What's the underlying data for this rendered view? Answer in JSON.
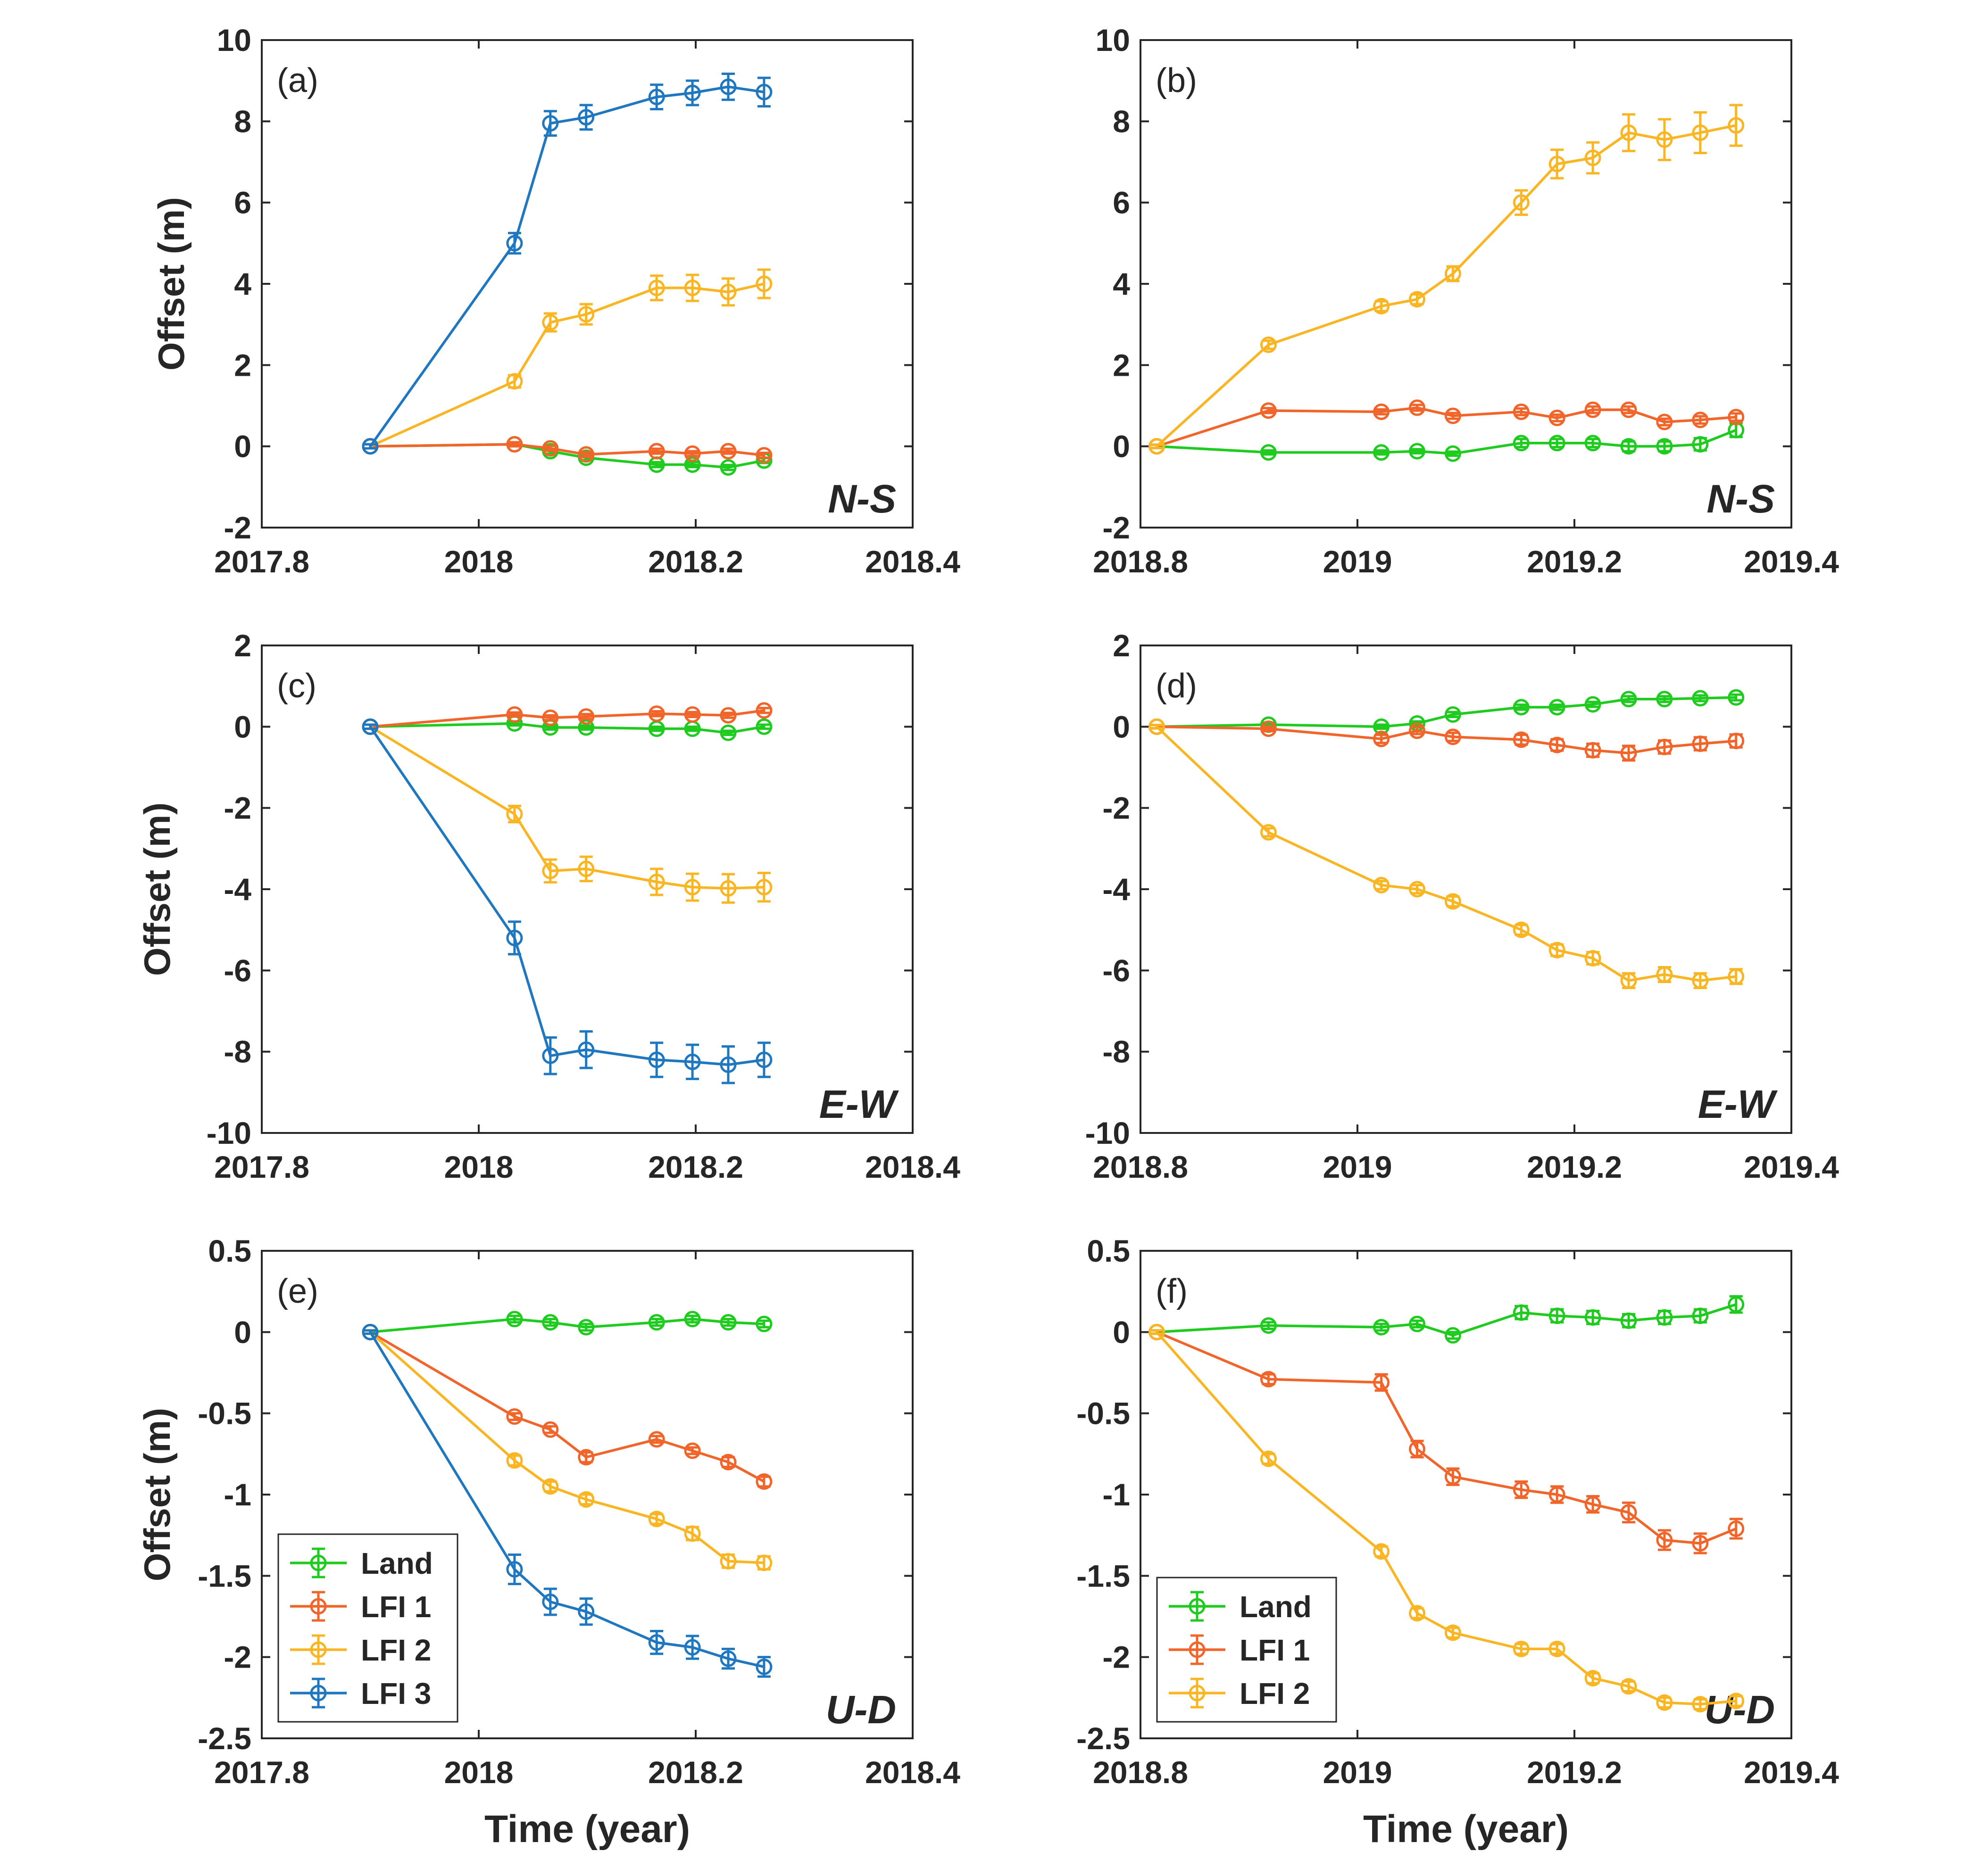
{
  "colors": {
    "Land": "#1fcb1f",
    "LFI 1": "#f1652a",
    "LFI 2": "#f9b522",
    "LFI 3": "#1f77c0",
    "axis": "#262626"
  },
  "xlabel": "Time (year)",
  "ylabel": "Offset (m)",
  "chart_data": [
    {
      "type": "line",
      "panel": "(a)",
      "component": "N-S",
      "xlim": [
        2017.8,
        2018.4
      ],
      "xticks": [
        2017.8,
        2018,
        2018.2,
        2018.4
      ],
      "xticklabels": [
        "2017.8",
        "2018",
        "2018.2",
        "2018.4"
      ],
      "ylim": [
        -2,
        10
      ],
      "yticks": [
        -2,
        0,
        2,
        4,
        6,
        8,
        10
      ],
      "yticklabels": [
        "-2",
        "0",
        "2",
        "4",
        "6",
        "8",
        "10"
      ],
      "ylabel": "Offset (m)",
      "xlabel": "",
      "series": [
        {
          "name": "Land",
          "x": [
            2017.9,
            2018.033,
            2018.066,
            2018.099,
            2018.164,
            2018.197,
            2018.23,
            2018.263
          ],
          "y": [
            0,
            0.05,
            -0.12,
            -0.28,
            -0.45,
            -0.45,
            -0.52,
            -0.35
          ],
          "err": [
            0.05,
            0.05,
            0.06,
            0.06,
            0.06,
            0.06,
            0.06,
            0.06
          ]
        },
        {
          "name": "LFI 1",
          "x": [
            2017.9,
            2018.033,
            2018.066,
            2018.099,
            2018.164,
            2018.197,
            2018.23,
            2018.263
          ],
          "y": [
            0,
            0.05,
            -0.05,
            -0.2,
            -0.12,
            -0.18,
            -0.12,
            -0.22
          ],
          "err": [
            0.05,
            0.05,
            0.06,
            0.06,
            0.06,
            0.06,
            0.06,
            0.06
          ]
        },
        {
          "name": "LFI 2",
          "x": [
            2017.9,
            2018.033,
            2018.066,
            2018.099,
            2018.164,
            2018.197,
            2018.23,
            2018.263
          ],
          "y": [
            0,
            1.6,
            3.05,
            3.25,
            3.9,
            3.9,
            3.8,
            4.0
          ],
          "err": [
            0.05,
            0.15,
            0.22,
            0.25,
            0.3,
            0.32,
            0.33,
            0.35
          ]
        },
        {
          "name": "LFI 3",
          "x": [
            2017.9,
            2018.033,
            2018.066,
            2018.099,
            2018.164,
            2018.197,
            2018.23,
            2018.263
          ],
          "y": [
            0,
            5.0,
            7.95,
            8.1,
            8.6,
            8.7,
            8.85,
            8.72
          ],
          "err": [
            0.05,
            0.25,
            0.3,
            0.3,
            0.3,
            0.3,
            0.32,
            0.35
          ]
        }
      ]
    },
    {
      "type": "line",
      "panel": "(b)",
      "component": "N-S",
      "xlim": [
        2018.8,
        2019.4
      ],
      "xticks": [
        2018.8,
        2019,
        2019.2,
        2019.4
      ],
      "xticklabels": [
        "2018.8",
        "2019",
        "2019.2",
        "2019.4"
      ],
      "ylim": [
        -2,
        10
      ],
      "yticks": [
        -2,
        0,
        2,
        4,
        6,
        8,
        10
      ],
      "yticklabels": [
        "-2",
        "0",
        "2",
        "4",
        "6",
        "8",
        "10"
      ],
      "ylabel": "",
      "xlabel": "",
      "series": [
        {
          "name": "Land",
          "x": [
            2018.815,
            2018.918,
            2019.022,
            2019.055,
            2019.088,
            2019.151,
            2019.184,
            2019.217,
            2019.25,
            2019.283,
            2019.316,
            2019.349
          ],
          "y": [
            0,
            -0.15,
            -0.15,
            -0.12,
            -0.18,
            0.08,
            0.08,
            0.08,
            0.0,
            0.0,
            0.05,
            0.4
          ],
          "err": [
            0.04,
            0.05,
            0.05,
            0.05,
            0.05,
            0.1,
            0.1,
            0.1,
            0.12,
            0.12,
            0.15,
            0.17
          ]
        },
        {
          "name": "LFI 1",
          "x": [
            2018.815,
            2018.918,
            2019.022,
            2019.055,
            2019.088,
            2019.151,
            2019.184,
            2019.217,
            2019.25,
            2019.283,
            2019.316,
            2019.349
          ],
          "y": [
            0,
            0.88,
            0.85,
            0.95,
            0.75,
            0.85,
            0.7,
            0.9,
            0.9,
            0.6,
            0.65,
            0.72
          ],
          "err": [
            0.04,
            0.06,
            0.06,
            0.07,
            0.07,
            0.08,
            0.08,
            0.08,
            0.08,
            0.08,
            0.09,
            0.09
          ]
        },
        {
          "name": "LFI 2",
          "x": [
            2018.815,
            2018.918,
            2019.022,
            2019.055,
            2019.088,
            2019.151,
            2019.184,
            2019.217,
            2019.25,
            2019.283,
            2019.316,
            2019.349
          ],
          "y": [
            0,
            2.5,
            3.45,
            3.62,
            4.25,
            6.0,
            6.95,
            7.1,
            7.72,
            7.55,
            7.72,
            7.9
          ],
          "err": [
            0.04,
            0.1,
            0.12,
            0.12,
            0.18,
            0.3,
            0.35,
            0.38,
            0.45,
            0.5,
            0.5,
            0.5
          ]
        }
      ]
    },
    {
      "type": "line",
      "panel": "(c)",
      "component": "E-W",
      "xlim": [
        2017.8,
        2018.4
      ],
      "xticks": [
        2017.8,
        2018,
        2018.2,
        2018.4
      ],
      "xticklabels": [
        "2017.8",
        "2018",
        "2018.2",
        "2018.4"
      ],
      "ylim": [
        -10,
        2
      ],
      "yticks": [
        -10,
        -8,
        -6,
        -4,
        -2,
        0,
        2
      ],
      "yticklabels": [
        "-10",
        "-8",
        "-6",
        "-4",
        "-2",
        "0",
        "2"
      ],
      "ylabel": "Offset (m)",
      "xlabel": "",
      "series": [
        {
          "name": "Land",
          "x": [
            2017.9,
            2018.033,
            2018.066,
            2018.099,
            2018.164,
            2018.197,
            2018.23,
            2018.263
          ],
          "y": [
            0,
            0.08,
            -0.02,
            -0.02,
            -0.05,
            -0.05,
            -0.15,
            0.0
          ],
          "err": [
            0.05,
            0.05,
            0.05,
            0.05,
            0.05,
            0.05,
            0.05,
            0.05
          ]
        },
        {
          "name": "LFI 1",
          "x": [
            2017.9,
            2018.033,
            2018.066,
            2018.099,
            2018.164,
            2018.197,
            2018.23,
            2018.263
          ],
          "y": [
            0,
            0.3,
            0.22,
            0.25,
            0.32,
            0.3,
            0.28,
            0.4
          ],
          "err": [
            0.05,
            0.05,
            0.06,
            0.06,
            0.06,
            0.06,
            0.06,
            0.06
          ]
        },
        {
          "name": "LFI 2",
          "x": [
            2017.9,
            2018.033,
            2018.066,
            2018.099,
            2018.164,
            2018.197,
            2018.23,
            2018.263
          ],
          "y": [
            0,
            -2.15,
            -3.55,
            -3.5,
            -3.82,
            -3.95,
            -3.98,
            -3.95
          ],
          "err": [
            0.05,
            0.2,
            0.28,
            0.3,
            0.32,
            0.33,
            0.35,
            0.35
          ]
        },
        {
          "name": "LFI 3",
          "x": [
            2017.9,
            2018.033,
            2018.066,
            2018.099,
            2018.164,
            2018.197,
            2018.23,
            2018.263
          ],
          "y": [
            0,
            -5.2,
            -8.1,
            -7.95,
            -8.2,
            -8.25,
            -8.32,
            -8.2
          ],
          "err": [
            0.05,
            0.4,
            0.45,
            0.45,
            0.42,
            0.42,
            0.45,
            0.42
          ]
        }
      ]
    },
    {
      "type": "line",
      "panel": "(d)",
      "component": "E-W",
      "xlim": [
        2018.8,
        2019.4
      ],
      "xticks": [
        2018.8,
        2019,
        2019.2,
        2019.4
      ],
      "xticklabels": [
        "2018.8",
        "2019",
        "2019.2",
        "2019.4"
      ],
      "ylim": [
        -10,
        2
      ],
      "yticks": [
        -10,
        -8,
        -6,
        -4,
        -2,
        0,
        2
      ],
      "yticklabels": [
        "-10",
        "-8",
        "-6",
        "-4",
        "-2",
        "0",
        "2"
      ],
      "ylabel": "",
      "xlabel": "",
      "series": [
        {
          "name": "Land",
          "x": [
            2018.815,
            2018.918,
            2019.022,
            2019.055,
            2019.088,
            2019.151,
            2019.184,
            2019.217,
            2019.25,
            2019.283,
            2019.316,
            2019.349
          ],
          "y": [
            0,
            0.05,
            0.0,
            0.08,
            0.3,
            0.48,
            0.48,
            0.55,
            0.68,
            0.68,
            0.7,
            0.72
          ],
          "err": [
            0.04,
            0.05,
            0.05,
            0.05,
            0.06,
            0.06,
            0.06,
            0.06,
            0.07,
            0.07,
            0.07,
            0.07
          ]
        },
        {
          "name": "LFI 1",
          "x": [
            2018.815,
            2018.918,
            2019.022,
            2019.055,
            2019.088,
            2019.151,
            2019.184,
            2019.217,
            2019.25,
            2019.283,
            2019.316,
            2019.349
          ],
          "y": [
            0,
            -0.05,
            -0.3,
            -0.1,
            -0.25,
            -0.32,
            -0.45,
            -0.58,
            -0.65,
            -0.5,
            -0.42,
            -0.35
          ],
          "err": [
            0.04,
            0.06,
            0.1,
            0.08,
            0.1,
            0.12,
            0.14,
            0.16,
            0.18,
            0.16,
            0.16,
            0.16
          ]
        },
        {
          "name": "LFI 2",
          "x": [
            2018.815,
            2018.918,
            2019.022,
            2019.055,
            2019.088,
            2019.151,
            2019.184,
            2019.217,
            2019.25,
            2019.283,
            2019.316,
            2019.349
          ],
          "y": [
            0,
            -2.6,
            -3.9,
            -4.0,
            -4.3,
            -5.0,
            -5.5,
            -5.7,
            -6.25,
            -6.1,
            -6.25,
            -6.15
          ],
          "err": [
            0.04,
            0.1,
            0.1,
            0.1,
            0.12,
            0.12,
            0.14,
            0.15,
            0.18,
            0.18,
            0.18,
            0.18
          ]
        }
      ]
    },
    {
      "type": "line",
      "panel": "(e)",
      "component": "U-D",
      "xlim": [
        2017.8,
        2018.4
      ],
      "xticks": [
        2017.8,
        2018,
        2018.2,
        2018.4
      ],
      "xticklabels": [
        "2017.8",
        "2018",
        "2018.2",
        "2018.4"
      ],
      "ylim": [
        -2.5,
        0.5
      ],
      "yticks": [
        -2.5,
        -2,
        -1.5,
        -1,
        -0.5,
        0,
        0.5
      ],
      "yticklabels": [
        "-2.5",
        "-2",
        "-1.5",
        "-1",
        "-0.5",
        "0",
        "0.5"
      ],
      "ylabel": "Offset (m)",
      "xlabel": "Time (year)",
      "legend": [
        "Land",
        "LFI 1",
        "LFI 2",
        "LFI 3"
      ],
      "legend_position": "bottom-left",
      "series": [
        {
          "name": "Land",
          "x": [
            2017.9,
            2018.033,
            2018.066,
            2018.099,
            2018.164,
            2018.197,
            2018.23,
            2018.263
          ],
          "y": [
            0,
            0.08,
            0.06,
            0.03,
            0.06,
            0.08,
            0.06,
            0.05
          ],
          "err": [
            0.01,
            0.02,
            0.02,
            0.02,
            0.02,
            0.02,
            0.02,
            0.02
          ]
        },
        {
          "name": "LFI 1",
          "x": [
            2017.9,
            2018.033,
            2018.066,
            2018.099,
            2018.164,
            2018.197,
            2018.23,
            2018.263
          ],
          "y": [
            0,
            -0.52,
            -0.6,
            -0.77,
            -0.66,
            -0.73,
            -0.8,
            -0.92
          ],
          "err": [
            0.01,
            0.02,
            0.02,
            0.03,
            0.02,
            0.02,
            0.03,
            0.03
          ]
        },
        {
          "name": "LFI 2",
          "x": [
            2017.9,
            2018.033,
            2018.066,
            2018.099,
            2018.164,
            2018.197,
            2018.23,
            2018.263
          ],
          "y": [
            0,
            -0.79,
            -0.95,
            -1.03,
            -1.15,
            -1.24,
            -1.41,
            -1.42
          ],
          "err": [
            0.01,
            0.03,
            0.03,
            0.03,
            0.03,
            0.04,
            0.04,
            0.04
          ]
        },
        {
          "name": "LFI 3",
          "x": [
            2017.9,
            2018.033,
            2018.066,
            2018.099,
            2018.164,
            2018.197,
            2018.23,
            2018.263
          ],
          "y": [
            0,
            -1.46,
            -1.66,
            -1.72,
            -1.91,
            -1.94,
            -2.01,
            -2.06
          ],
          "err": [
            0.01,
            0.09,
            0.08,
            0.08,
            0.07,
            0.07,
            0.06,
            0.06
          ]
        }
      ]
    },
    {
      "type": "line",
      "panel": "(f)",
      "component": "U-D",
      "xlim": [
        2018.8,
        2019.4
      ],
      "xticks": [
        2018.8,
        2019,
        2019.2,
        2019.4
      ],
      "xticklabels": [
        "2018.8",
        "2019",
        "2019.2",
        "2019.4"
      ],
      "ylim": [
        -2.5,
        0.5
      ],
      "yticks": [
        -2.5,
        -2,
        -1.5,
        -1,
        -0.5,
        0,
        0.5
      ],
      "yticklabels": [
        "-2.5",
        "-2",
        "-1.5",
        "-1",
        "-0.5",
        "0",
        "0.5"
      ],
      "ylabel": "",
      "xlabel": "Time (year)",
      "legend": [
        "Land",
        "LFI 1",
        "LFI 2"
      ],
      "legend_position": "bottom-left",
      "series": [
        {
          "name": "Land",
          "x": [
            2018.815,
            2018.918,
            2019.022,
            2019.055,
            2019.088,
            2019.151,
            2019.184,
            2019.217,
            2019.25,
            2019.283,
            2019.316,
            2019.349
          ],
          "y": [
            0,
            0.04,
            0.03,
            0.05,
            -0.02,
            0.12,
            0.1,
            0.09,
            0.07,
            0.09,
            0.1,
            0.17
          ],
          "err": [
            0.01,
            0.02,
            0.02,
            0.02,
            0.02,
            0.04,
            0.04,
            0.04,
            0.04,
            0.04,
            0.04,
            0.05
          ]
        },
        {
          "name": "LFI 1",
          "x": [
            2018.815,
            2018.918,
            2019.022,
            2019.055,
            2019.088,
            2019.151,
            2019.184,
            2019.217,
            2019.25,
            2019.283,
            2019.316,
            2019.349
          ],
          "y": [
            0,
            -0.29,
            -0.31,
            -0.72,
            -0.89,
            -0.97,
            -1.0,
            -1.06,
            -1.11,
            -1.28,
            -1.3,
            -1.21
          ],
          "err": [
            0.01,
            0.03,
            0.05,
            0.05,
            0.05,
            0.05,
            0.05,
            0.05,
            0.06,
            0.06,
            0.06,
            0.06
          ]
        },
        {
          "name": "LFI 2",
          "x": [
            2018.815,
            2018.918,
            2019.022,
            2019.055,
            2019.088,
            2019.151,
            2019.184,
            2019.217,
            2019.25,
            2019.283,
            2019.316,
            2019.349
          ],
          "y": [
            0,
            -0.78,
            -1.35,
            -1.73,
            -1.85,
            -1.95,
            -1.95,
            -2.13,
            -2.18,
            -2.28,
            -2.29,
            -2.27
          ],
          "err": [
            0.01,
            0.03,
            0.03,
            0.03,
            0.03,
            0.03,
            0.03,
            0.03,
            0.03,
            0.03,
            0.03,
            0.03
          ]
        }
      ]
    }
  ]
}
